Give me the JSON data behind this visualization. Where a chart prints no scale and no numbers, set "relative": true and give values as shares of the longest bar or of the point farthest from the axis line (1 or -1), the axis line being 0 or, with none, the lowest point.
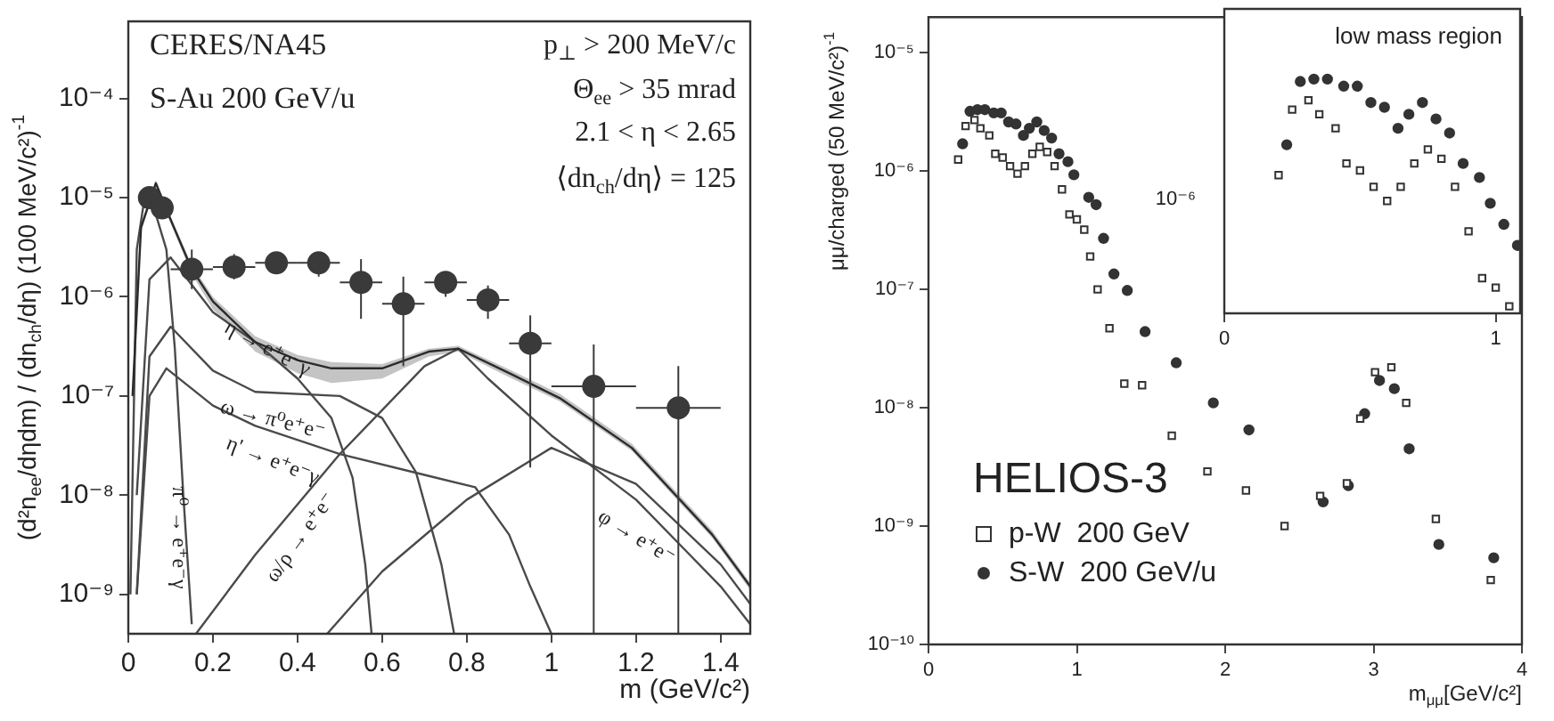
{
  "chart_data": [
    {
      "type": "scatter",
      "xlabel": "m (GeV/c²)",
      "ylabel": "(d²n$_{ee}$/dηdm) / (dn$_{ch}$/dη) (100 MeV/c²)$^{-1}$",
      "log": "y",
      "xlim": [
        0,
        1.47
      ],
      "xticks": [
        0,
        0.2,
        0.4,
        0.6,
        0.8,
        1,
        1.2,
        1.4
      ],
      "ylim": [
        4e-10,
        0.0006
      ],
      "yticks": [
        {
          "value": 1e-09,
          "label": "10⁻⁹"
        },
        {
          "value": 1e-08,
          "label": "10⁻⁸"
        },
        {
          "value": 1e-07,
          "label": "10⁻⁷"
        },
        {
          "value": 1e-06,
          "label": "10⁻⁶"
        },
        {
          "value": 1e-05,
          "label": "10⁻⁵"
        },
        {
          "value": 0.0001,
          "label": "10⁻⁴"
        }
      ],
      "legend": false,
      "annotations": [
        "CERES/NA45",
        "S-Au 200 GeV/u",
        "p$_{⊥}$ > 200 MeV/c",
        "Θ$_{ee}$ > 35 mrad",
        "2.1 < η < 2.65",
        "⟨dn$_{ch}$/dη⟩ = 125",
        "π⁰ → e⁺e⁻γ",
        "η → e⁺e⁻γ",
        "ω → π⁰e⁺e⁻",
        "η' → e⁺e⁻γ",
        "ω/ρ → e⁺e⁻",
        "φ → e⁺e⁻"
      ],
      "series": [
        {
          "marker": "circle",
          "color": "#3a3a3a",
          "x": [
            0.05,
            0.08,
            0.15,
            0.25,
            0.35,
            0.45,
            0.55,
            0.65,
            0.75,
            0.85,
            0.95,
            1.1,
            1.3
          ],
          "values": [
            1e-05,
            7.9e-06,
            1.9e-06,
            2e-06,
            2.2e-06,
            2.2e-06,
            1.4e-06,
            8.5e-07,
            1.4e-06,
            9.3e-07,
            3.4e-07,
            1.25e-07,
            7.6e-08
          ],
          "errors": [
            null,
            null,
            [
              1.2e-06,
              3e-06
            ],
            [
              1.5e-06,
              2.7e-06
            ],
            [
              1.7e-06,
              2.8e-06
            ],
            [
              1.6e-06,
              2.8e-06
            ],
            [
              6e-07,
              2.4e-06
            ],
            [
              2e-07,
              1.6e-06
            ],
            [
              1e-06,
              1.8e-06
            ],
            [
              6e-07,
              1.3e-06
            ],
            [
              1.9e-08,
              6.5e-07
            ],
            [
              4e-10,
              3.3e-07
            ],
            [
              4e-10,
              2e-07
            ]
          ],
          "xerrors": [
            null,
            null,
            0.05,
            0.05,
            0.05,
            0.05,
            0.05,
            0.05,
            0.05,
            0.05,
            0.05,
            0.1,
            0.1
          ]
        },
        {
          "type": "line",
          "marker": "none",
          "color": "#2a2a2a",
          "x": [
            0.01,
            0.03,
            0.065,
            0.1,
            0.15,
            0.2,
            0.3,
            0.4,
            0.48,
            0.6,
            0.71,
            0.78,
            0.9,
            1.02,
            1.19,
            1.38,
            1.47
          ],
          "values": [
            1e-07,
            5e-06,
            1.4e-05,
            6e-06,
            1.9e-06,
            9e-07,
            3.5e-07,
            2.3e-07,
            1.9e-07,
            1.9e-07,
            2.8e-07,
            3e-07,
            1.7e-07,
            9.5e-08,
            3e-08,
            4e-09,
            1.2e-09
          ],
          "lower": [
            8e-08,
            4.5e-06,
            1.3e-05,
            5.5e-06,
            1.7e-06,
            7.5e-07,
            2.8e-07,
            1.7e-07,
            1.35e-07,
            1.5e-07,
            2.5e-07,
            2.8e-07,
            1.55e-07,
            8.8e-08,
            2.8e-08,
            3.7e-09,
            1.1e-09
          ],
          "upper": [
            1.2e-07,
            5.5e-06,
            1.5e-05,
            6.5e-06,
            2.1e-06,
            1e-06,
            4e-07,
            2.6e-07,
            2.2e-07,
            2.1e-07,
            3e-07,
            3.2e-07,
            1.85e-07,
            1.05e-07,
            3.3e-08,
            4.4e-09,
            1.3e-09
          ]
        },
        {
          "type": "line",
          "marker": "none",
          "color": "#4a4a4a",
          "x": [
            0.005,
            0.02,
            0.035,
            0.06,
            0.09,
            0.11,
            0.13,
            0.15
          ],
          "values": [
            1e-09,
            3e-06,
            8e-06,
            8e-06,
            3e-06,
            3e-07,
            1e-08,
            5e-10
          ]
        },
        {
          "type": "line",
          "marker": "none",
          "color": "#4a4a4a",
          "x": [
            0.02,
            0.05,
            0.1,
            0.2,
            0.3,
            0.4,
            0.48,
            0.53,
            0.56,
            0.575
          ],
          "values": [
            1e-08,
            1.5e-06,
            2.5e-06,
            7e-07,
            3.5e-07,
            1.5e-07,
            6e-08,
            1.5e-08,
            2e-09,
            4e-10
          ]
        },
        {
          "type": "line",
          "marker": "none",
          "color": "#4a4a4a",
          "x": [
            0.02,
            0.05,
            0.1,
            0.2,
            0.3,
            0.5,
            0.6,
            0.68,
            0.74,
            0.77
          ],
          "values": [
            1e-09,
            2.5e-07,
            5e-07,
            1.8e-07,
            1.1e-07,
            1e-07,
            6e-08,
            1.7e-08,
            2e-09,
            4e-10
          ]
        },
        {
          "type": "line",
          "marker": "none",
          "color": "#4a4a4a",
          "x": [
            0.02,
            0.05,
            0.09,
            0.2,
            0.3,
            0.5,
            0.7,
            0.82,
            0.9,
            0.95,
            1.0
          ],
          "values": [
            1e-09,
            1e-07,
            1.9e-07,
            8e-08,
            5e-08,
            2.6e-08,
            1.6e-08,
            1.2e-08,
            4e-09,
            1.2e-09,
            4e-10
          ]
        },
        {
          "type": "line",
          "marker": "none",
          "color": "#4a4a4a",
          "x": [
            0.16,
            0.3,
            0.5,
            0.7,
            0.78,
            0.85,
            1.0,
            1.2,
            1.4,
            1.47
          ],
          "values": [
            4e-10,
            2.5e-09,
            2.6e-08,
            2e-07,
            3e-07,
            1.5e-07,
            4e-08,
            9e-09,
            1.2e-09,
            5e-10
          ]
        },
        {
          "type": "line",
          "marker": "none",
          "color": "#4a4a4a",
          "x": [
            0.47,
            0.6,
            0.8,
            1.0,
            1.2,
            1.4,
            1.47
          ],
          "values": [
            4e-10,
            1.7e-09,
            9e-09,
            3e-08,
            1.3e-08,
            2e-09,
            8e-10
          ]
        }
      ]
    },
    {
      "type": "scatter",
      "xlabel": "m$_{μμ}$[GeV/c²]",
      "ylabel": "μμ/charged (50 MeV/c²)$^{-1}$",
      "log": "y",
      "xlim": [
        0,
        4
      ],
      "xticks": [
        0,
        1,
        2,
        3,
        4
      ],
      "ylim": [
        1e-10,
        2e-05
      ],
      "yticks": [
        {
          "value": 1e-10,
          "label": "10⁻¹⁰"
        },
        {
          "value": 1e-09,
          "label": "10⁻⁹"
        },
        {
          "value": 1e-08,
          "label": "10⁻⁸"
        },
        {
          "value": 1e-07,
          "label": "10⁻⁷"
        },
        {
          "value": 1e-06,
          "label": "10⁻⁶"
        },
        {
          "value": 1e-05,
          "label": "10⁻⁵"
        }
      ],
      "legend": "bottom left",
      "legend_title": "HELIOS-3",
      "series": [
        {
          "name": "p-W  200 GeV",
          "marker": "square",
          "color": "#333333",
          "x": [
            0.2,
            0.25,
            0.31,
            0.35,
            0.41,
            0.45,
            0.5,
            0.55,
            0.6,
            0.65,
            0.7,
            0.75,
            0.8,
            0.85,
            0.9,
            0.95,
            1.0,
            1.05,
            1.09,
            1.14,
            1.22,
            1.32,
            1.44,
            1.64,
            1.88,
            2.14,
            2.4,
            2.64,
            2.82,
            2.91,
            3.01,
            3.12,
            3.22,
            3.42,
            3.79
          ],
          "values": [
            1.25e-06,
            2.4e-06,
            2.7e-06,
            2.3e-06,
            2e-06,
            1.4e-06,
            1.3e-06,
            1.1e-06,
            9.5e-07,
            1.1e-06,
            1.4e-06,
            1.6e-06,
            1.45e-06,
            1.1e-06,
            7e-07,
            4.3e-07,
            3.9e-07,
            3.2e-07,
            1.9e-07,
            1e-07,
            4.7e-08,
            1.6e-08,
            1.55e-08,
            5.8e-09,
            2.9e-09,
            2e-09,
            1e-09,
            1.8e-09,
            2.3e-09,
            8.1e-09,
            2e-08,
            2.2e-08,
            1.1e-08,
            1.15e-09,
            3.5e-10
          ]
        },
        {
          "name": "S-W  200 GeV/u",
          "marker": "circle",
          "color": "#333333",
          "x": [
            0.23,
            0.28,
            0.33,
            0.38,
            0.44,
            0.49,
            0.54,
            0.59,
            0.64,
            0.68,
            0.73,
            0.78,
            0.83,
            0.88,
            0.94,
            0.98,
            1.08,
            1.13,
            1.18,
            1.25,
            1.34,
            1.46,
            1.67,
            1.92,
            2.16,
            2.66,
            2.83,
            2.94,
            3.04,
            3.14,
            3.24,
            3.44,
            3.81
          ],
          "values": [
            1.7e-06,
            3.2e-06,
            3.3e-06,
            3.3e-06,
            3.1e-06,
            3.1e-06,
            2.6e-06,
            2.5e-06,
            2e-06,
            2.3e-06,
            2.6e-06,
            2.2e-06,
            1.9e-06,
            1.4e-06,
            1.2e-06,
            9.3e-07,
            6e-07,
            5.2e-07,
            2.7e-07,
            1.35e-07,
            9.8e-08,
            4.4e-08,
            2.4e-08,
            1.1e-08,
            6.5e-09,
            1.6e-09,
            2.2e-09,
            8.9e-09,
            1.7e-08,
            1.45e-08,
            4.5e-09,
            7e-10,
            5.4e-10
          ]
        }
      ]
    },
    {
      "type": "scatter",
      "title": "low mass region",
      "relative": true,
      "annotations": [
        "10⁻⁶"
      ],
      "xlim": [
        0,
        1.09
      ],
      "xticks": [
        0,
        1
      ],
      "series": [
        {
          "marker": "square",
          "color": "#333333",
          "x": [
            0.2,
            0.25,
            0.31,
            0.35,
            0.41,
            0.45,
            0.5,
            0.55,
            0.6,
            0.65,
            0.7,
            0.75,
            0.8,
            0.85,
            0.9,
            0.95,
            1.0,
            1.05
          ],
          "values": [
            0.59,
            0.87,
            0.91,
            0.85,
            0.79,
            0.64,
            0.61,
            0.54,
            0.48,
            0.54,
            0.64,
            0.7,
            0.66,
            0.54,
            0.35,
            0.15,
            0.11,
            0.03
          ]
        },
        {
          "marker": "circle",
          "color": "#333333",
          "x": [
            0.23,
            0.28,
            0.33,
            0.38,
            0.44,
            0.49,
            0.54,
            0.59,
            0.64,
            0.68,
            0.73,
            0.78,
            0.83,
            0.88,
            0.94,
            0.98,
            1.03,
            1.08
          ],
          "values": [
            0.72,
            0.99,
            1,
            1,
            0.97,
            0.97,
            0.9,
            0.88,
            0.79,
            0.85,
            0.9,
            0.83,
            0.77,
            0.64,
            0.58,
            0.47,
            0.38,
            0.29
          ]
        }
      ]
    }
  ]
}
